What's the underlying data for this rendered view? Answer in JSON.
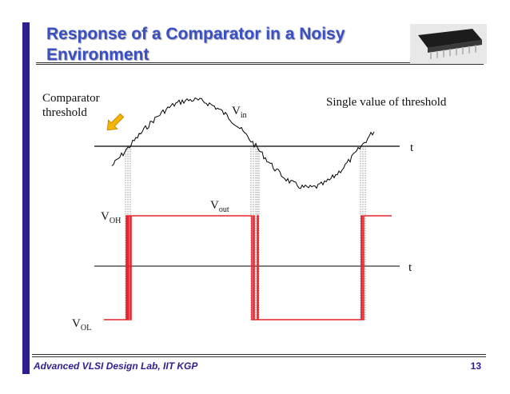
{
  "slide": {
    "title": "Response of a Comparator in a Noisy Environment",
    "footer": "Advanced VLSI Design Lab, IIT KGP",
    "page_number": "13"
  },
  "diagram": {
    "threshold_label": "Comparator threshold",
    "single_value_label": "Single value of threshold",
    "vin_label": {
      "main": "V",
      "sub": "in"
    },
    "vout_label": {
      "main": "V",
      "sub": "out"
    },
    "voh_label": {
      "main": "V",
      "sub": "OH"
    },
    "vol_label": {
      "main": "V",
      "sub": "OL"
    },
    "time_axis_label_top": "t",
    "time_axis_label_bottom": "t"
  },
  "colors": {
    "accent_bar": "#2e1f8f",
    "title": "#3a4fc4",
    "output_signal": "#e8242c",
    "arrow_fill": "#f4b400",
    "arrow_stroke": "#c08000"
  },
  "icons": {
    "threshold_arrow": "arrow-down-right-icon",
    "chip": "ic-chip-photo"
  }
}
